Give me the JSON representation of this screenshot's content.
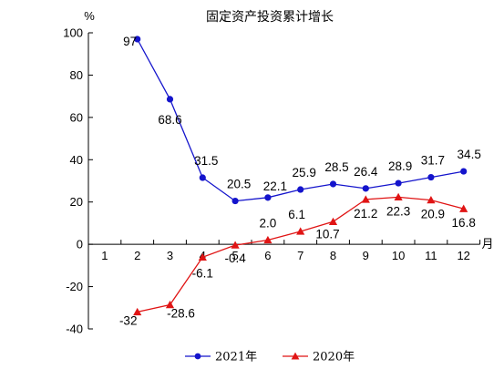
{
  "chart_data": {
    "type": "line",
    "title": "固定资产投资累计增长",
    "ylabel": "%",
    "xlabel": "月",
    "ylim": [
      -40,
      100
    ],
    "yticks": [
      "-40",
      "-20",
      "0",
      "20",
      "40",
      "60",
      "80",
      "100"
    ],
    "xticks": [
      "1",
      "2",
      "3",
      "4",
      "5",
      "6",
      "7",
      "8",
      "9",
      "10",
      "11",
      "12"
    ],
    "legend_position": "bottom",
    "grid": false,
    "series": [
      {
        "name": "2021年",
        "color": "#1414cc",
        "marker": "circle",
        "x": [
          2,
          3,
          4,
          5,
          6,
          7,
          8,
          9,
          10,
          11,
          12
        ],
        "values": [
          97,
          68.6,
          31.5,
          20.5,
          22.1,
          25.9,
          28.5,
          26.4,
          28.9,
          31.7,
          34.5
        ],
        "labels": [
          "97",
          "68.6",
          "31.5",
          "20.5",
          "22.1",
          "25.9",
          "28.5",
          "26.4",
          "28.9",
          "31.7",
          "34.5"
        ]
      },
      {
        "name": "2020年",
        "color": "#e01414",
        "marker": "triangle",
        "x": [
          2,
          3,
          4,
          5,
          6,
          7,
          8,
          9,
          10,
          11,
          12
        ],
        "values": [
          -32,
          -28.6,
          -6.1,
          -0.4,
          2.0,
          6.1,
          10.7,
          21.2,
          22.3,
          20.9,
          16.8
        ],
        "labels": [
          "-32",
          "-28.6",
          "-6.1",
          "-0.4",
          "2.0",
          "6.1",
          "10.7",
          "21.2",
          "22.3",
          "20.9",
          "16.8"
        ]
      }
    ]
  }
}
